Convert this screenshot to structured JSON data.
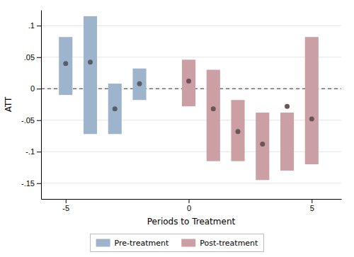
{
  "chart_data": {
    "type": "bar",
    "xlabel": "Periods to Treatment",
    "ylabel": "ATT",
    "series": [
      {
        "name": "Pre-treatment",
        "color": "#9db4cc",
        "x": [
          -5,
          -4,
          -3,
          -2
        ],
        "values": [
          0.04,
          0.042,
          -0.032,
          0.008
        ],
        "ci_lower": [
          -0.01,
          -0.072,
          -0.072,
          -0.018
        ],
        "ci_upper": [
          0.082,
          0.115,
          0.008,
          0.032
        ]
      },
      {
        "name": "Post-treatment",
        "color": "#cc9fa5",
        "x": [
          0,
          1,
          2,
          3,
          4,
          5
        ],
        "values": [
          0.012,
          -0.032,
          -0.068,
          -0.088,
          -0.028,
          -0.048
        ],
        "ci_lower": [
          -0.028,
          -0.115,
          -0.115,
          -0.145,
          -0.13,
          -0.12
        ],
        "ci_upper": [
          0.046,
          0.03,
          -0.018,
          -0.038,
          -0.038,
          0.082
        ]
      }
    ],
    "xlim": [
      -6.0,
      6.2
    ],
    "xticks": [
      -5,
      0,
      5
    ],
    "ylim": [
      -0.175,
      0.125
    ],
    "yticks": [
      {
        "value": -0.15,
        "label": "-.15"
      },
      {
        "value": -0.1,
        "label": "-.1"
      },
      {
        "value": -0.05,
        "label": "-.05"
      },
      {
        "value": 0.0,
        "label": "0"
      },
      {
        "value": 0.05,
        "label": ".05"
      },
      {
        "value": 0.1,
        "label": ".1"
      }
    ],
    "grid": true,
    "legend": "bottom"
  }
}
